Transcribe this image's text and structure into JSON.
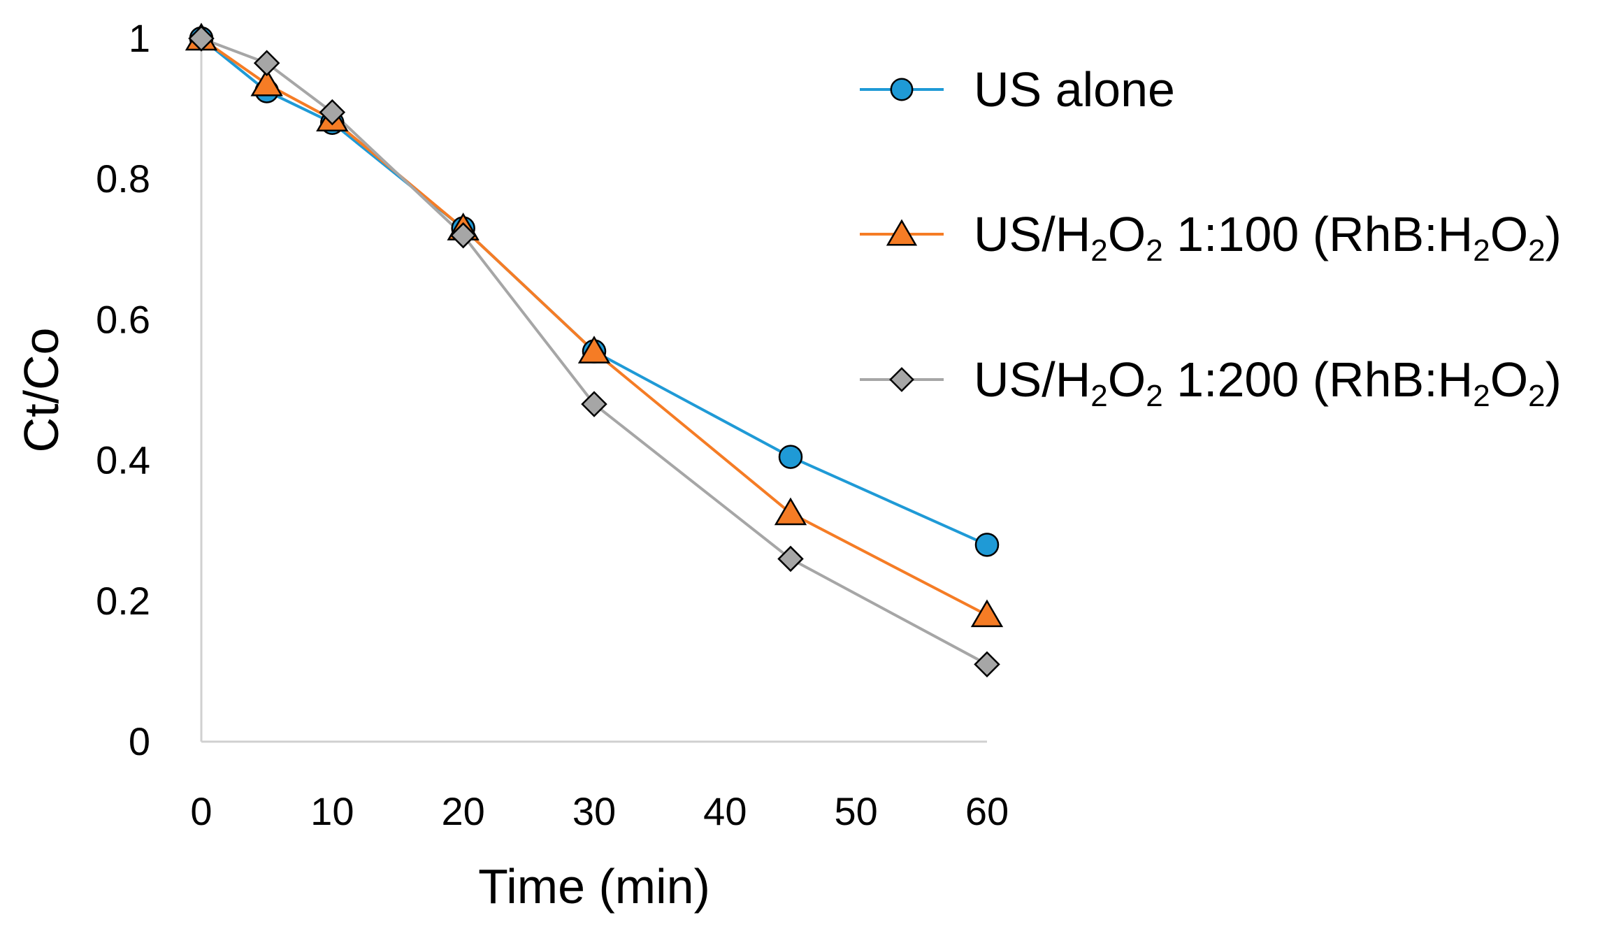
{
  "chart_data": {
    "type": "line",
    "title": "",
    "xlabel": "Time (min)",
    "ylabel": "Ct/Co",
    "xlim": [
      0,
      60
    ],
    "ylim": [
      0,
      1
    ],
    "xticks": [
      0,
      10,
      20,
      30,
      40,
      50,
      60
    ],
    "xtick_labels": [
      "0",
      "10",
      "20",
      "30",
      "40",
      "50",
      "60"
    ],
    "yticks": [
      0,
      0.2,
      0.4,
      0.6,
      0.8,
      1
    ],
    "ytick_labels": [
      "0",
      "0.2",
      "0.4",
      "0.6",
      "0.8",
      "1"
    ],
    "grid": false,
    "legend_position": "right",
    "series": [
      {
        "name": "US alone",
        "legend_parts": [
          {
            "text": "US alone",
            "sub": false
          }
        ],
        "color": "#1f9ad6",
        "marker": "circle",
        "x": [
          0,
          5,
          10,
          20,
          30,
          45,
          60
        ],
        "y": [
          1.0,
          0.925,
          0.88,
          0.73,
          0.555,
          0.405,
          0.28
        ]
      },
      {
        "name": "US/H2O2 1:100 (RhB:H2O2)",
        "legend_parts": [
          {
            "text": "US/H",
            "sub": false
          },
          {
            "text": "2",
            "sub": true
          },
          {
            "text": "O",
            "sub": false
          },
          {
            "text": "2",
            "sub": true
          },
          {
            "text": " 1:100 (RhB:H",
            "sub": false
          },
          {
            "text": "2",
            "sub": true
          },
          {
            "text": "O",
            "sub": false
          },
          {
            "text": "2",
            "sub": true
          },
          {
            "text": ")",
            "sub": false
          }
        ],
        "color": "#f57c25",
        "marker": "triangle",
        "x": [
          0,
          5,
          10,
          20,
          30,
          45,
          60
        ],
        "y": [
          1.0,
          0.935,
          0.885,
          0.73,
          0.555,
          0.325,
          0.18
        ]
      },
      {
        "name": "US/H2O2 1:200 (RhB:H2O2)",
        "legend_parts": [
          {
            "text": "US/H",
            "sub": false
          },
          {
            "text": "2",
            "sub": true
          },
          {
            "text": "O",
            "sub": false
          },
          {
            "text": "2",
            "sub": true
          },
          {
            "text": " 1:200 (RhB:H",
            "sub": false
          },
          {
            "text": "2",
            "sub": true
          },
          {
            "text": "O",
            "sub": false
          },
          {
            "text": "2",
            "sub": true
          },
          {
            "text": ")",
            "sub": false
          }
        ],
        "color": "#a6a6a6",
        "marker": "diamond",
        "x": [
          0,
          5,
          10,
          20,
          30,
          45,
          60
        ],
        "y": [
          1.0,
          0.965,
          0.895,
          0.72,
          0.48,
          0.26,
          0.11
        ]
      }
    ]
  }
}
